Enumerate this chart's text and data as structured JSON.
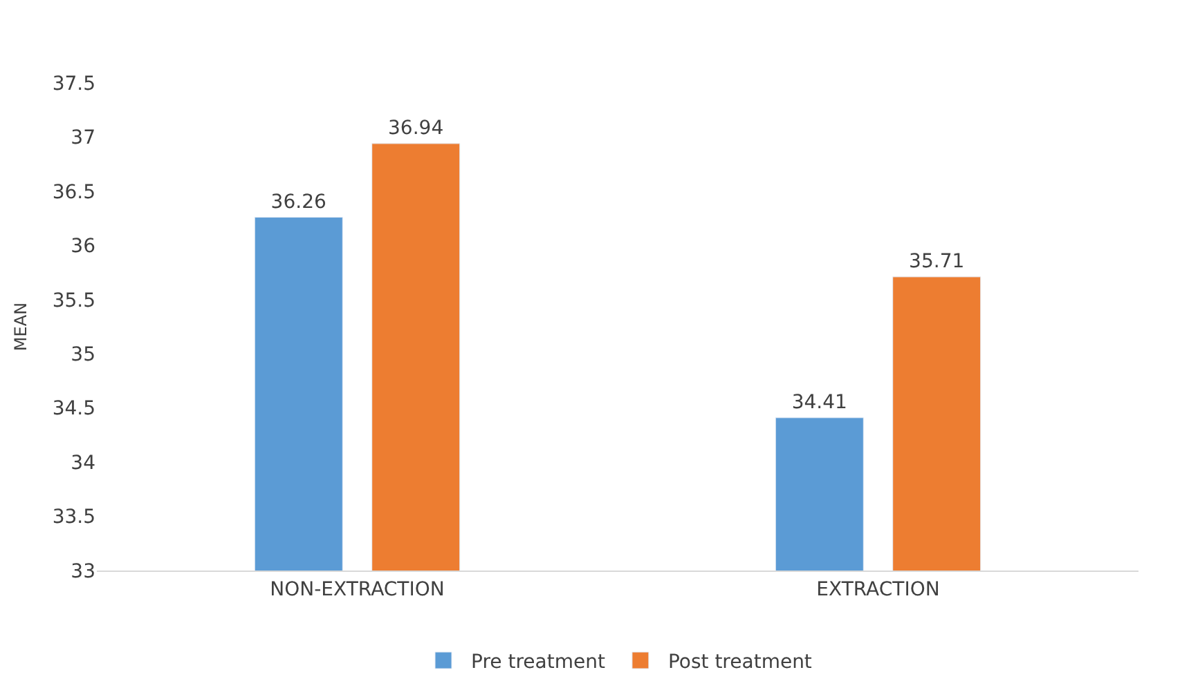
{
  "chart_data": {
    "type": "bar",
    "ylabel": "MEAN",
    "categories": [
      "NON-EXTRACTION",
      "EXTRACTION"
    ],
    "series": [
      {
        "name": "Pre treatment",
        "color": "#5b9bd5",
        "values": [
          36.26,
          34.41
        ]
      },
      {
        "name": "Post treatment",
        "color": "#ed7d31",
        "values": [
          36.94,
          35.71
        ]
      }
    ],
    "ylim": [
      33,
      37.5
    ],
    "yticks": [
      33,
      33.5,
      34,
      34.5,
      35,
      35.5,
      36,
      36.5,
      37,
      37.5
    ],
    "data_labels": true,
    "grid": false,
    "legend": "bottom"
  }
}
